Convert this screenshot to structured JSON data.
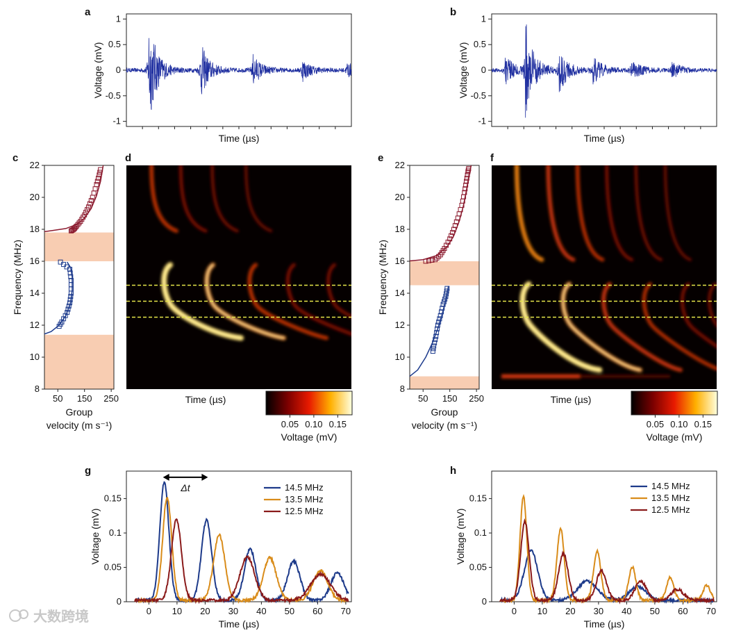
{
  "figure": {
    "panel_labels": [
      "a",
      "b",
      "c",
      "d",
      "e",
      "f",
      "g",
      "h"
    ],
    "watermark": "大数跨境"
  },
  "chart_data": [
    {
      "id": "a",
      "type": "line",
      "title": "",
      "xlabel": "Time (µs)",
      "ylabel": "Voltage (mV)",
      "ylim": [
        -1.1,
        1.1
      ],
      "yticks": [
        -1,
        -0.5,
        0,
        0.5,
        1
      ],
      "ytick_labels": [
        "-1",
        "-0.5",
        "0",
        "0.5",
        "1"
      ],
      "series": [
        {
          "name": "signal",
          "color": "#1f2fa0",
          "envelope": {
            "onset": 0.1,
            "events": [
              [
                0.0,
                1.05
              ],
              [
                0.23,
                0.55
              ],
              [
                0.46,
                0.32
              ],
              [
                0.68,
                0.22
              ],
              [
                0.88,
                0.15
              ]
            ],
            "noise": 0.04
          }
        }
      ]
    },
    {
      "id": "b",
      "type": "line",
      "title": "",
      "xlabel": "Time (µs)",
      "ylabel": "Voltage (mV)",
      "ylim": [
        -1.1,
        1.1
      ],
      "yticks": [
        -1,
        -0.5,
        0,
        0.5,
        1
      ],
      "ytick_labels": [
        "-1",
        "-0.5",
        "0",
        "0.5",
        "1"
      ],
      "series": [
        {
          "name": "signal",
          "color": "#1f2fa0",
          "envelope": {
            "onset": 0.0,
            "events": [
              [
                0.06,
                0.3
              ],
              [
                0.15,
                1.0
              ],
              [
                0.3,
                0.45
              ],
              [
                0.45,
                0.3
              ],
              [
                0.62,
                0.22
              ],
              [
                0.8,
                0.16
              ]
            ],
            "noise": 0.04
          }
        }
      ]
    },
    {
      "id": "c",
      "type": "scatter",
      "title": "",
      "xlabel": "Group velocity (m s⁻¹)",
      "ylabel": "Frequency (MHz)",
      "xlim": [
        0,
        260
      ],
      "ylim": [
        8,
        22
      ],
      "xticks": [
        50,
        150,
        250
      ],
      "yticks": [
        8,
        10,
        12,
        14,
        16,
        18,
        20,
        22
      ],
      "bandgaps": [
        [
          16.0,
          17.8
        ],
        [
          8.0,
          11.4
        ]
      ],
      "upper_band": {
        "color": "#8b1a2e",
        "points": [
          [
            100,
            17.9
          ],
          [
            110,
            18.0
          ],
          [
            120,
            18.2
          ],
          [
            135,
            18.5
          ],
          [
            150,
            18.9
          ],
          [
            165,
            19.4
          ],
          [
            180,
            20.0
          ],
          [
            195,
            20.8
          ],
          [
            205,
            21.4
          ],
          [
            212,
            21.9
          ]
        ],
        "curve": [
          [
            0,
            17.85
          ],
          [
            30,
            17.92
          ],
          [
            80,
            18.05
          ],
          [
            120,
            18.3
          ],
          [
            150,
            18.7
          ],
          [
            175,
            19.3
          ],
          [
            195,
            20.1
          ],
          [
            210,
            21.0
          ],
          [
            220,
            22.0
          ]
        ]
      },
      "lower_band": {
        "color": "#1c3a8c",
        "points": [
          [
            60,
            15.95
          ],
          [
            95,
            15.5
          ],
          [
            100,
            14.8
          ],
          [
            100,
            14.0
          ],
          [
            95,
            13.4
          ],
          [
            85,
            12.8
          ],
          [
            65,
            12.2
          ],
          [
            50,
            11.8
          ]
        ],
        "curve": [
          [
            0,
            11.45
          ],
          [
            25,
            11.6
          ],
          [
            55,
            12.0
          ],
          [
            80,
            12.6
          ],
          [
            98,
            13.4
          ],
          [
            104,
            14.2
          ],
          [
            104,
            15.0
          ],
          [
            98,
            15.6
          ],
          [
            85,
            15.95
          ]
        ]
      }
    },
    {
      "id": "d",
      "type": "heatmap",
      "title": "",
      "xlabel": "Time (µs)",
      "ylabel": "",
      "ylim": [
        8,
        22
      ],
      "dashed_lines_mhz": [
        14.5,
        13.5,
        12.5
      ],
      "colorbar": {
        "label": "Voltage (mV)",
        "ticks": [
          0.05,
          0.1,
          0.15
        ],
        "tick_labels": [
          "0.05",
          "0.10",
          "0.15"
        ],
        "range": [
          0,
          0.18
        ]
      },
      "arcs": [
        {
          "t0": 0.17,
          "fc": 15.6,
          "strength": 1.0,
          "band": "lower"
        },
        {
          "t0": 0.36,
          "fc": 15.6,
          "strength": 0.75,
          "band": "lower"
        },
        {
          "t0": 0.55,
          "fc": 15.6,
          "strength": 0.55,
          "band": "lower"
        },
        {
          "t0": 0.72,
          "fc": 15.6,
          "strength": 0.45,
          "band": "lower"
        },
        {
          "t0": 0.9,
          "fc": 15.6,
          "strength": 0.4,
          "band": "lower"
        },
        {
          "t0": 0.13,
          "fc": 17.9,
          "strength": 0.55,
          "band": "upper"
        },
        {
          "t0": 0.26,
          "fc": 17.9,
          "strength": 0.4,
          "band": "upper"
        },
        {
          "t0": 0.4,
          "fc": 17.9,
          "strength": 0.32,
          "band": "upper"
        },
        {
          "t0": 0.55,
          "fc": 17.9,
          "strength": 0.25,
          "band": "upper"
        }
      ]
    },
    {
      "id": "e",
      "type": "scatter",
      "title": "",
      "xlabel": "Group velocity (m s⁻¹)",
      "ylabel": "Frequency (MHz)",
      "xlim": [
        0,
        260
      ],
      "ylim": [
        8,
        22
      ],
      "xticks": [
        50,
        150,
        250
      ],
      "yticks": [
        8,
        10,
        12,
        14,
        16,
        18,
        20,
        22
      ],
      "bandgaps": [
        [
          14.5,
          16.0
        ],
        [
          8.0,
          8.8
        ]
      ],
      "upper_band": {
        "color": "#8b1a2e",
        "points": [
          [
            60,
            16.0
          ],
          [
            95,
            16.1
          ],
          [
            115,
            16.4
          ],
          [
            130,
            16.8
          ],
          [
            150,
            17.4
          ],
          [
            165,
            18.0
          ],
          [
            180,
            18.7
          ],
          [
            195,
            19.5
          ],
          [
            205,
            20.3
          ],
          [
            212,
            21.0
          ],
          [
            218,
            21.6
          ],
          [
            222,
            21.9
          ]
        ],
        "curve": [
          [
            0,
            16.02
          ],
          [
            50,
            16.1
          ],
          [
            100,
            16.35
          ],
          [
            140,
            16.9
          ],
          [
            165,
            17.6
          ],
          [
            185,
            18.5
          ],
          [
            200,
            19.4
          ],
          [
            212,
            20.4
          ],
          [
            222,
            21.4
          ],
          [
            230,
            22.0
          ]
        ]
      },
      "lower_band": {
        "color": "#1c3a8c",
        "points": [
          [
            140,
            14.3
          ],
          [
            135,
            13.8
          ],
          [
            125,
            13.3
          ],
          [
            115,
            12.6
          ],
          [
            105,
            12.0
          ],
          [
            98,
            11.3
          ],
          [
            90,
            10.7
          ],
          [
            85,
            10.2
          ]
        ],
        "curve": [
          [
            0,
            8.8
          ],
          [
            30,
            9.2
          ],
          [
            60,
            10.0
          ],
          [
            85,
            10.9
          ],
          [
            105,
            11.8
          ],
          [
            120,
            12.6
          ],
          [
            132,
            13.4
          ],
          [
            140,
            14.0
          ],
          [
            145,
            14.45
          ]
        ]
      }
    },
    {
      "id": "f",
      "type": "heatmap",
      "title": "",
      "xlabel": "Time (µs)",
      "ylabel": "",
      "ylim": [
        8,
        22
      ],
      "dashed_lines_mhz": [
        14.5,
        13.5,
        12.5
      ],
      "colorbar": {
        "label": "Voltage (mV)",
        "ticks": [
          0.05,
          0.1,
          0.15
        ],
        "tick_labels": [
          "0.05",
          "0.10",
          "0.15"
        ],
        "range": [
          0,
          0.18
        ]
      },
      "arcs": [
        {
          "t0": 0.14,
          "fc": 14.4,
          "strength": 1.0,
          "band": "lower"
        },
        {
          "t0": 0.32,
          "fc": 14.4,
          "strength": 0.75,
          "band": "lower"
        },
        {
          "t0": 0.5,
          "fc": 14.4,
          "strength": 0.6,
          "band": "lower"
        },
        {
          "t0": 0.68,
          "fc": 14.4,
          "strength": 0.48,
          "band": "lower"
        },
        {
          "t0": 0.85,
          "fc": 14.4,
          "strength": 0.4,
          "band": "lower"
        },
        {
          "t0": 0.97,
          "fc": 14.4,
          "strength": 0.32,
          "band": "lower"
        },
        {
          "t0": 0.13,
          "fc": 16.1,
          "strength": 0.7,
          "band": "upper"
        },
        {
          "t0": 0.27,
          "fc": 16.1,
          "strength": 0.6,
          "band": "upper"
        },
        {
          "t0": 0.4,
          "fc": 16.1,
          "strength": 0.5,
          "band": "upper"
        },
        {
          "t0": 0.53,
          "fc": 16.1,
          "strength": 0.4,
          "band": "upper"
        },
        {
          "t0": 0.66,
          "fc": 16.1,
          "strength": 0.32,
          "band": "upper"
        },
        {
          "t0": 0.79,
          "fc": 16.1,
          "strength": 0.25,
          "band": "upper"
        }
      ],
      "low_band_streak": {
        "freq": 8.8,
        "strength": 0.8
      }
    },
    {
      "id": "g",
      "type": "line",
      "title": "",
      "xlabel": "Time (µs)",
      "ylabel": "Voltage (mV)",
      "xlim": [
        -8,
        72
      ],
      "ylim": [
        0,
        0.19
      ],
      "xticks": [
        0,
        10,
        20,
        30,
        40,
        50,
        60,
        70
      ],
      "yticks": [
        0,
        0.05,
        0.1,
        0.15
      ],
      "ytick_labels": [
        "0",
        "0.05",
        "0.1",
        "0.15"
      ],
      "annotation": {
        "text": "Δt",
        "from_x": 5,
        "to_x": 21,
        "y": 0.181
      },
      "legend_position": "top-right",
      "series": [
        {
          "name": "14.5 MHz",
          "color": "#1d3a8a",
          "peaks": [
            [
              5.5,
              0.172,
              1.6
            ],
            [
              20.5,
              0.117,
              1.8
            ],
            [
              36,
              0.075,
              2.0
            ],
            [
              51.5,
              0.057,
              2.2
            ],
            [
              67,
              0.04,
              2.3
            ]
          ]
        },
        {
          "name": "13.5 MHz",
          "color": "#d98c1a",
          "peaks": [
            [
              6.5,
              0.15,
              1.6
            ],
            [
              25,
              0.095,
              2.0
            ],
            [
              43,
              0.062,
              2.3
            ],
            [
              61,
              0.043,
              2.6
            ]
          ]
        },
        {
          "name": "12.5 MHz",
          "color": "#8a1a1a",
          "peaks": [
            [
              9.8,
              0.117,
              1.8
            ],
            [
              35,
              0.063,
              2.6
            ],
            [
              61,
              0.038,
              3.5
            ]
          ]
        }
      ]
    },
    {
      "id": "h",
      "type": "line",
      "title": "",
      "xlabel": "Time (µs)",
      "ylabel": "Voltage (mV)",
      "xlim": [
        -8,
        72
      ],
      "ylim": [
        0,
        0.19
      ],
      "xticks": [
        0,
        10,
        20,
        30,
        40,
        50,
        60,
        70
      ],
      "yticks": [
        0,
        0.05,
        0.1,
        0.15
      ],
      "ytick_labels": [
        "0",
        "0.05",
        "0.1",
        "0.15"
      ],
      "legend_position": "top-right",
      "series": [
        {
          "name": "14.5 MHz",
          "color": "#1d3a8a",
          "peaks": [
            [
              6,
              0.072,
              2.4
            ],
            [
              26,
              0.028,
              3.5
            ],
            [
              44,
              0.02,
              3.0
            ]
          ]
        },
        {
          "name": "13.5 MHz",
          "color": "#d98c1a",
          "peaks": [
            [
              3.3,
              0.152,
              1.2
            ],
            [
              16.5,
              0.104,
              1.3
            ],
            [
              29.5,
              0.072,
              1.3
            ],
            [
              42,
              0.048,
              1.3
            ],
            [
              55.5,
              0.033,
              1.3
            ],
            [
              68.5,
              0.022,
              1.3
            ]
          ]
        },
        {
          "name": "12.5 MHz",
          "color": "#8a1a1a",
          "peaks": [
            [
              3.8,
              0.115,
              1.5
            ],
            [
              17.5,
              0.068,
              1.7
            ],
            [
              31,
              0.043,
              1.8
            ],
            [
              45,
              0.028,
              2.0
            ],
            [
              58,
              0.016,
              2.2
            ]
          ]
        }
      ]
    }
  ]
}
